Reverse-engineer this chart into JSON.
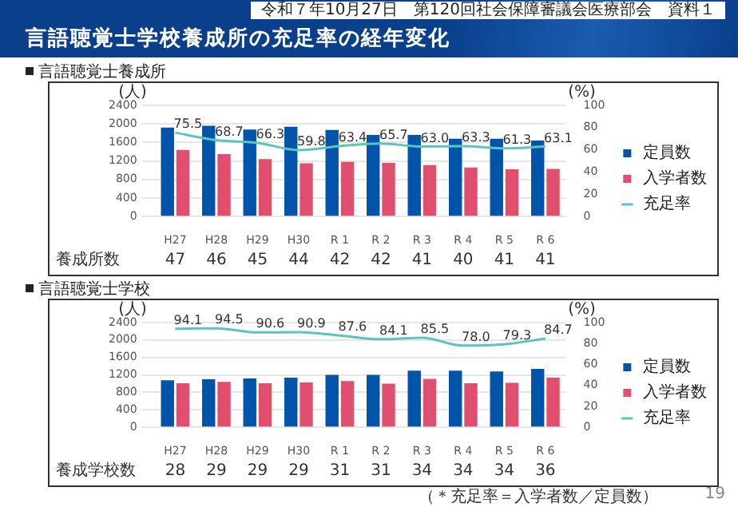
{
  "chart_data": [
    {
      "type": "bar",
      "title": "言語聴覚士学校養成所の充足率の経年変化",
      "subtitle": "言語聴覚士養成所",
      "ylabel": "(人)",
      "y2label": "(%)",
      "categories": [
        "H27",
        "H28",
        "H29",
        "H30",
        "R 1",
        "R 2",
        "R 3",
        "R 4",
        "R 5",
        "R 6"
      ],
      "series": [
        {
          "name": "定員数",
          "color": "#0055aa",
          "values": [
            1920,
            1960,
            1880,
            1940,
            1870,
            1760,
            1760,
            1680,
            1680,
            1640
          ]
        },
        {
          "name": "入学者数",
          "color": "#e0506e",
          "values": [
            1440,
            1350,
            1240,
            1150,
            1180,
            1160,
            1110,
            1060,
            1020,
            1030
          ]
        },
        {
          "name": "充足率",
          "type": "line",
          "axis": "y2",
          "color": "#5cc4c0",
          "values": [
            75.5,
            68.7,
            66.3,
            59.8,
            63.4,
            65.7,
            63.0,
            63.3,
            61.3,
            63.1
          ],
          "value_labels": [
            "75.5",
            "68.7",
            "66.3",
            "59.8",
            "63.4",
            "65.7",
            "63.0",
            "63.3",
            "61.3",
            "63.1"
          ]
        }
      ],
      "ylim": [
        0,
        2400
      ],
      "yticks": [
        0,
        400,
        800,
        1200,
        1600,
        2000,
        2400
      ],
      "y2lim": [
        0,
        100
      ],
      "y2ticks": [
        0,
        20,
        40,
        60,
        80,
        100
      ],
      "grid": "y",
      "legend": "right",
      "marker": "none",
      "annotations": [
        "令和７年10月27日　第120回社会保障審議会医療部会　資料１",
        "養成所数",
        "47",
        "46",
        "45",
        "44",
        "42",
        "42",
        "41",
        "40",
        "41",
        "41"
      ]
    },
    {
      "type": "bar",
      "title": "言語聴覚士学校",
      "ylabel": "(人)",
      "y2label": "(%)",
      "categories": [
        "H27",
        "H28",
        "H29",
        "H30",
        "R 1",
        "R 2",
        "R 3",
        "R 4",
        "R 5",
        "R 6"
      ],
      "series": [
        {
          "name": "定員数",
          "color": "#0055aa",
          "values": [
            1080,
            1100,
            1120,
            1140,
            1200,
            1200,
            1300,
            1300,
            1280,
            1340
          ]
        },
        {
          "name": "入学者数",
          "color": "#e0506e",
          "values": [
            1010,
            1040,
            1010,
            1030,
            1060,
            1000,
            1110,
            1010,
            1020,
            1140
          ]
        },
        {
          "name": "充足率",
          "type": "line",
          "axis": "y2",
          "color": "#5cc4c0",
          "values": [
            94.1,
            94.5,
            90.6,
            90.9,
            87.6,
            84.1,
            85.5,
            78.0,
            79.3,
            84.7
          ],
          "value_labels": [
            "94.1",
            "94.5",
            "90.6",
            "90.9",
            "87.6",
            "84.1",
            "85.5",
            "78.0",
            "79.3",
            "84.7"
          ]
        }
      ],
      "ylim": [
        0,
        2400
      ],
      "yticks": [
        0,
        400,
        800,
        1200,
        1600,
        2000,
        2400
      ],
      "y2lim": [
        0,
        100
      ],
      "y2ticks": [
        0,
        20,
        40,
        60,
        80,
        100
      ],
      "grid": "y",
      "legend": "right",
      "marker": "none",
      "annotations": [
        "養成学校数",
        "28",
        "29",
        "29",
        "29",
        "31",
        "31",
        "34",
        "34",
        "34",
        "36",
        "（＊充足率＝入学者数／定員数）",
        "19"
      ]
    }
  ]
}
